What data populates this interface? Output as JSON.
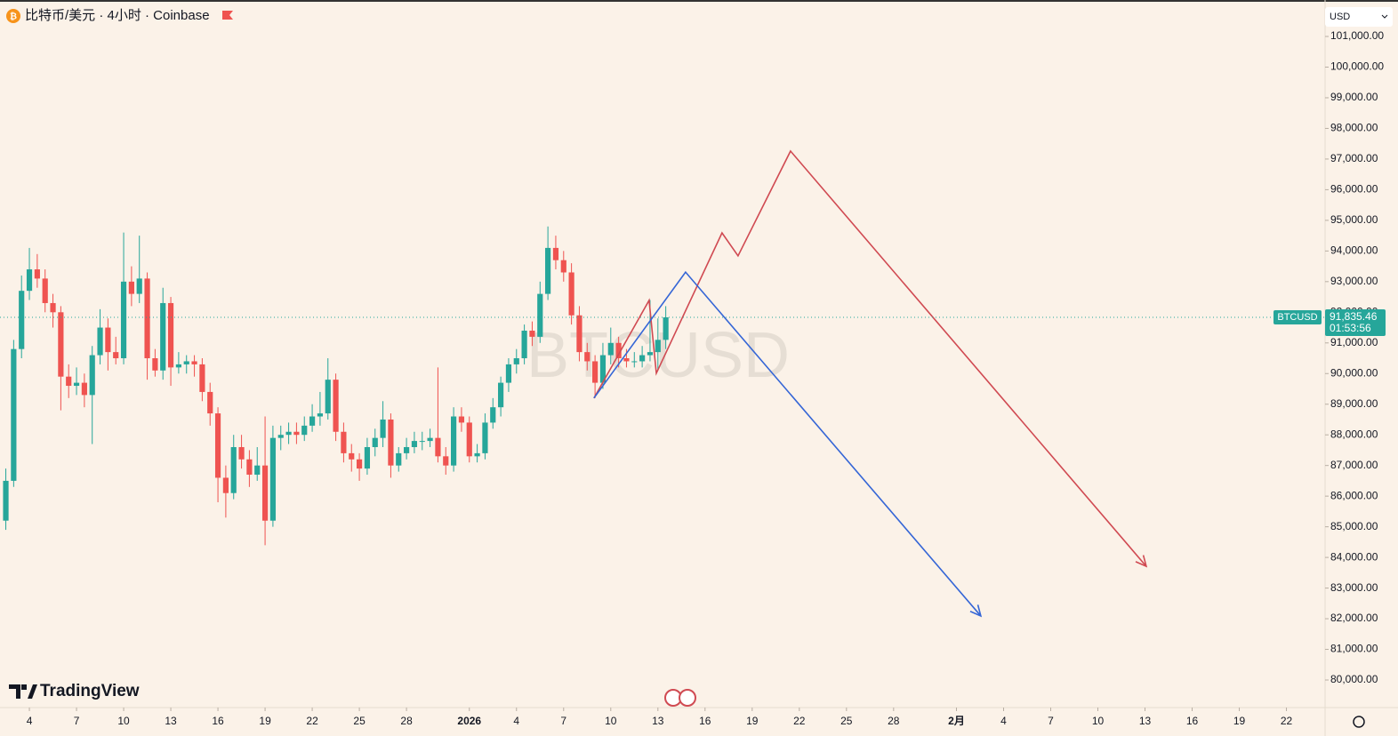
{
  "chart_data": {
    "type": "candlestick",
    "title": "比特币/美元 · 4小时 · Coinbase",
    "currency": "USD",
    "watermark": "BTCUSD",
    "brand": "TradingView",
    "symbol_label": "BTCUSD",
    "last_price": {
      "value": 91835.46,
      "label": "91,835.46"
    },
    "countdown": "01:53:56",
    "up_color": "#26a69a",
    "down_color": "#ef5350",
    "xlim": [
      2.13,
      86.46
    ],
    "ylim": [
      79130,
      102190
    ],
    "xticks": [
      {
        "value": 4,
        "label": "4"
      },
      {
        "value": 7,
        "label": "7"
      },
      {
        "value": 10,
        "label": "10"
      },
      {
        "value": 13,
        "label": "13"
      },
      {
        "value": 16,
        "label": "16"
      },
      {
        "value": 19,
        "label": "19"
      },
      {
        "value": 22,
        "label": "22"
      },
      {
        "value": 25,
        "label": "25"
      },
      {
        "value": 28,
        "label": "28"
      },
      {
        "value": 32,
        "label": "2026"
      },
      {
        "value": 35,
        "label": "4"
      },
      {
        "value": 38,
        "label": "7"
      },
      {
        "value": 41,
        "label": "10"
      },
      {
        "value": 44,
        "label": "13"
      },
      {
        "value": 47,
        "label": "16"
      },
      {
        "value": 50,
        "label": "19"
      },
      {
        "value": 53,
        "label": "22"
      },
      {
        "value": 56,
        "label": "25"
      },
      {
        "value": 59,
        "label": "28"
      },
      {
        "value": 63,
        "label": "2月"
      },
      {
        "value": 66,
        "label": "4"
      },
      {
        "value": 69,
        "label": "7"
      },
      {
        "value": 72,
        "label": "10"
      },
      {
        "value": 75,
        "label": "13"
      },
      {
        "value": 78,
        "label": "16"
      },
      {
        "value": 81,
        "label": "19"
      },
      {
        "value": 84,
        "label": "22"
      }
    ],
    "yticks": [
      {
        "value": 101000,
        "label": "101,000.00"
      },
      {
        "value": 100000,
        "label": "100,000.00"
      },
      {
        "value": 99000,
        "label": "99,000.00"
      },
      {
        "value": 98000,
        "label": "98,000.00"
      },
      {
        "value": 97000,
        "label": "97,000.00"
      },
      {
        "value": 96000,
        "label": "96,000.00"
      },
      {
        "value": 95000,
        "label": "95,000.00"
      },
      {
        "value": 94000,
        "label": "94,000.00"
      },
      {
        "value": 93000,
        "label": "93,000.00"
      },
      {
        "value": 92000,
        "label": "92,000.00"
      },
      {
        "value": 91000,
        "label": "91,000.00"
      },
      {
        "value": 90000,
        "label": "90,000.00"
      },
      {
        "value": 89000,
        "label": "89,000.00"
      },
      {
        "value": 88000,
        "label": "88,000.00"
      },
      {
        "value": 87000,
        "label": "87,000.00"
      },
      {
        "value": 86000,
        "label": "86,000.00"
      },
      {
        "value": 85000,
        "label": "85,000.00"
      },
      {
        "value": 84000,
        "label": "84,000.00"
      },
      {
        "value": 83000,
        "label": "83,000.00"
      },
      {
        "value": 82000,
        "label": "82,000.00"
      },
      {
        "value": 81000,
        "label": "81,000.00"
      },
      {
        "value": 80000,
        "label": "80,000.00"
      }
    ],
    "x": [
      2.5,
      3,
      3.5,
      4,
      4.5,
      5,
      5.5,
      6,
      6.5,
      7,
      7.5,
      8,
      8.5,
      9,
      9.5,
      10,
      10.5,
      11,
      11.5,
      12,
      12.5,
      13,
      13.5,
      14,
      14.5,
      15,
      15.5,
      16,
      16.5,
      17,
      17.5,
      18,
      18.5,
      19,
      19.5,
      20,
      20.5,
      21,
      21.5,
      22,
      22.5,
      23,
      23.5,
      24,
      24.5,
      25,
      25.5,
      26,
      26.5,
      27,
      27.5,
      28,
      28.5,
      29,
      29.5,
      30,
      30.5,
      31,
      31.5,
      32,
      32.5,
      33,
      33.5,
      34,
      34.5,
      35,
      35.5,
      36,
      36.5,
      37,
      37.5,
      38,
      38.5,
      39,
      39.5,
      40,
      40.5,
      41,
      41.5,
      42,
      42.5,
      43,
      43.5,
      44,
      44.5
    ],
    "candles": [
      [
        85200,
        86900,
        84900,
        86500
      ],
      [
        86500,
        91100,
        86300,
        90800
      ],
      [
        90800,
        93200,
        90500,
        92700
      ],
      [
        92700,
        94100,
        92400,
        93400
      ],
      [
        93400,
        93900,
        92800,
        93100
      ],
      [
        93100,
        93400,
        92000,
        92300
      ],
      [
        92300,
        92600,
        91500,
        92000
      ],
      [
        92000,
        92200,
        88800,
        89900
      ],
      [
        89900,
        90300,
        89200,
        89600
      ],
      [
        89600,
        90200,
        89300,
        89700
      ],
      [
        89700,
        90000,
        88900,
        89300
      ],
      [
        89300,
        90900,
        87700,
        90600
      ],
      [
        90600,
        92100,
        90300,
        91500
      ],
      [
        91500,
        91800,
        90100,
        90700
      ],
      [
        90700,
        91200,
        90300,
        90500
      ],
      [
        90500,
        94600,
        90300,
        93000
      ],
      [
        93000,
        93500,
        92200,
        92600
      ],
      [
        92600,
        94500,
        92300,
        93100
      ],
      [
        93100,
        93300,
        89800,
        90500
      ],
      [
        90500,
        90800,
        89900,
        90100
      ],
      [
        90100,
        92800,
        89800,
        92300
      ],
      [
        92300,
        92500,
        89600,
        90200
      ],
      [
        90200,
        90700,
        90000,
        90300
      ],
      [
        90300,
        90600,
        90000,
        90400
      ],
      [
        90400,
        90600,
        89900,
        90300
      ],
      [
        90300,
        90500,
        89100,
        89400
      ],
      [
        89400,
        89700,
        88300,
        88700
      ],
      [
        88700,
        88900,
        85800,
        86600
      ],
      [
        86600,
        87000,
        85300,
        86100
      ],
      [
        86100,
        88000,
        85900,
        87600
      ],
      [
        87600,
        88000,
        86900,
        87200
      ],
      [
        87200,
        87500,
        86300,
        86700
      ],
      [
        86700,
        87600,
        86500,
        87000
      ],
      [
        87000,
        88600,
        84400,
        85200
      ],
      [
        85200,
        88300,
        85000,
        87900
      ],
      [
        87900,
        88300,
        87500,
        88000
      ],
      [
        88000,
        88400,
        87700,
        88100
      ],
      [
        88100,
        88400,
        87700,
        88000
      ],
      [
        88000,
        88600,
        87800,
        88300
      ],
      [
        88300,
        89000,
        88100,
        88600
      ],
      [
        88600,
        89400,
        88300,
        88700
      ],
      [
        88700,
        90500,
        88500,
        89800
      ],
      [
        89800,
        90000,
        87800,
        88100
      ],
      [
        88100,
        88400,
        87100,
        87400
      ],
      [
        87400,
        87700,
        86800,
        87200
      ],
      [
        87200,
        87400,
        86500,
        86900
      ],
      [
        86900,
        87900,
        86700,
        87600
      ],
      [
        87600,
        88200,
        87300,
        87900
      ],
      [
        87900,
        89100,
        87600,
        88500
      ],
      [
        88500,
        88700,
        86600,
        87000
      ],
      [
        87000,
        87600,
        86800,
        87400
      ],
      [
        87400,
        87900,
        87200,
        87600
      ],
      [
        87600,
        88100,
        87400,
        87800
      ],
      [
        87800,
        88100,
        87500,
        87800
      ],
      [
        87800,
        88200,
        87600,
        87900
      ],
      [
        87900,
        90200,
        87100,
        87300
      ],
      [
        87300,
        87600,
        86700,
        87000
      ],
      [
        87000,
        88900,
        86800,
        88600
      ],
      [
        88600,
        88900,
        88100,
        88400
      ],
      [
        88400,
        88600,
        87100,
        87300
      ],
      [
        87300,
        87700,
        87100,
        87400
      ],
      [
        87400,
        88700,
        87200,
        88400
      ],
      [
        88400,
        89200,
        88200,
        88900
      ],
      [
        88900,
        89900,
        88600,
        89700
      ],
      [
        89700,
        90500,
        89400,
        90300
      ],
      [
        90300,
        90800,
        90000,
        90500
      ],
      [
        90500,
        91600,
        90300,
        91400
      ],
      [
        91400,
        91700,
        90900,
        91200
      ],
      [
        91200,
        93000,
        91000,
        92600
      ],
      [
        92600,
        94800,
        92400,
        94100
      ],
      [
        94100,
        94500,
        93400,
        93700
      ],
      [
        93700,
        94000,
        93000,
        93300
      ],
      [
        93300,
        93600,
        91600,
        91900
      ],
      [
        91900,
        92200,
        90400,
        90700
      ],
      [
        90700,
        91000,
        90100,
        90400
      ],
      [
        90400,
        90600,
        89200,
        89700
      ],
      [
        89700,
        91000,
        89500,
        90600
      ],
      [
        90600,
        91500,
        90300,
        91000
      ],
      [
        91000,
        91200,
        90200,
        90500
      ],
      [
        90500,
        90800,
        90200,
        90400
      ],
      [
        90400,
        90700,
        90200,
        90400
      ],
      [
        90400,
        90900,
        90200,
        90600
      ],
      [
        90600,
        92400,
        90400,
        90700
      ],
      [
        90700,
        91800,
        90100,
        91100
      ],
      [
        91100,
        92200,
        90800,
        91835.46
      ]
    ],
    "drawings": [
      {
        "color": "#d04a52",
        "points": [
          [
            39.93,
            89200
          ],
          [
            43.44,
            92390
          ],
          [
            43.9,
            90010
          ],
          [
            48.08,
            94590
          ],
          [
            49.1,
            93840
          ],
          [
            52.44,
            97260
          ],
          [
            75.08,
            83710
          ]
        ]
      },
      {
        "color": "#3566d6",
        "points": [
          [
            39.93,
            89200
          ],
          [
            45.76,
            93310
          ],
          [
            64.55,
            82090
          ]
        ]
      }
    ]
  }
}
